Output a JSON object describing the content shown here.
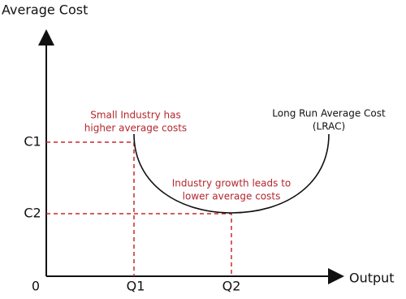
{
  "axes": {
    "y_label": "Average Cost",
    "x_label": "Output",
    "origin": "0"
  },
  "x_ticks": [
    "Q1",
    "Q2"
  ],
  "y_ticks": [
    "C1",
    "C2"
  ],
  "curve": {
    "label": [
      "Long Run Average Cost",
      "(LRAC)"
    ]
  },
  "annotations": [
    {
      "lines": [
        "Small Industry has",
        "higher average costs"
      ]
    },
    {
      "lines": [
        "Industry growth leads to",
        "lower average costs"
      ]
    }
  ]
}
